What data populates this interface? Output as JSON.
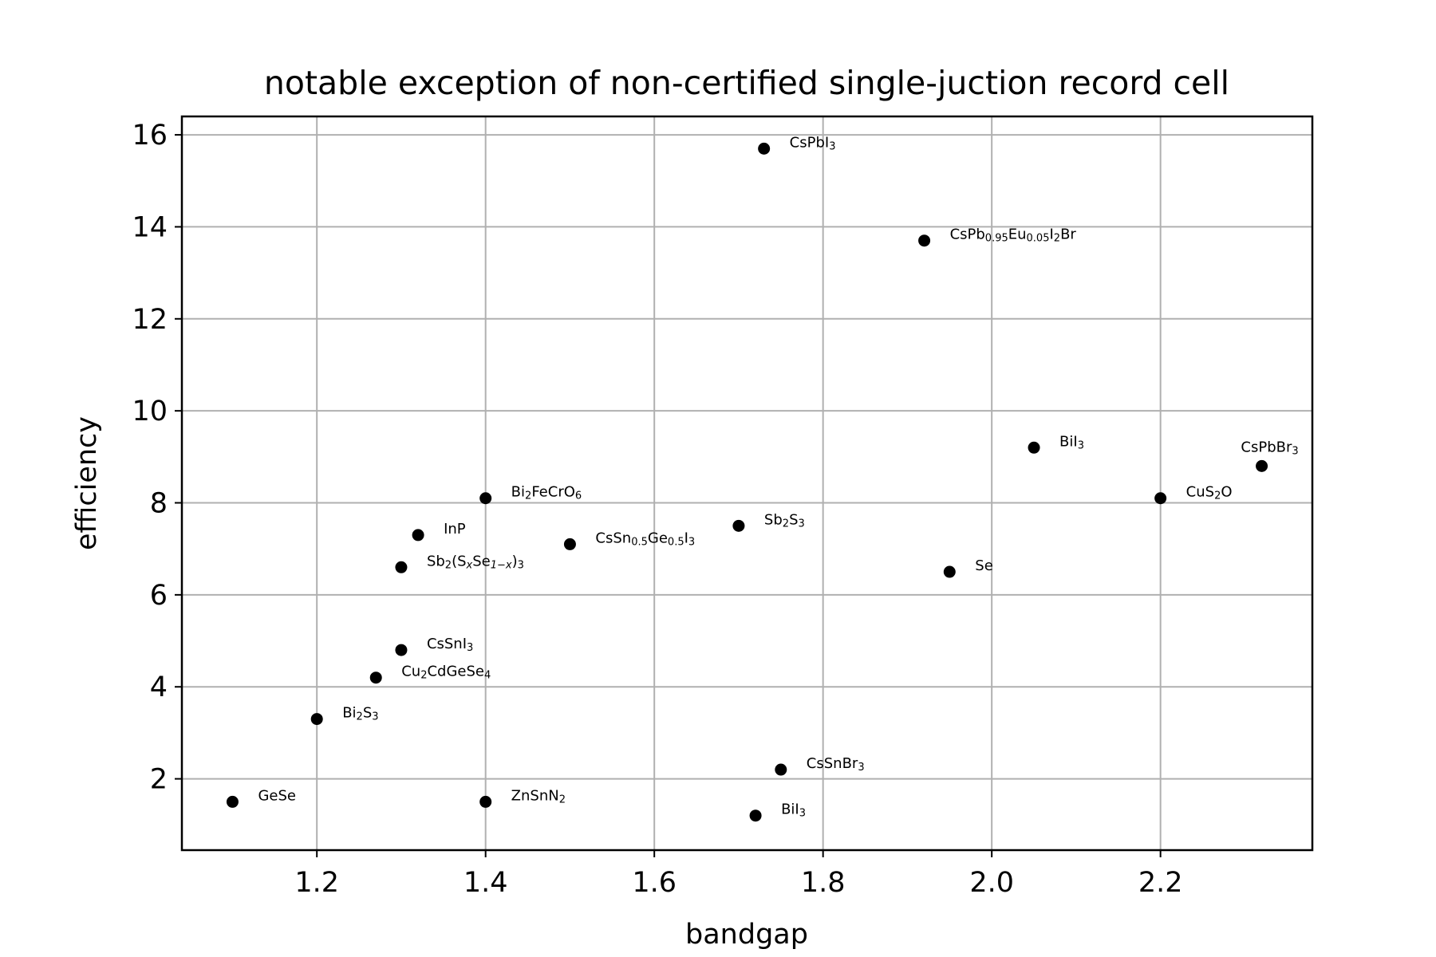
{
  "chart_data": {
    "type": "scatter",
    "title": "notable exception of non-certified single-juction record cell",
    "xlabel": "bandgap",
    "ylabel": "efficiency",
    "xlim": [
      1.04,
      2.38
    ],
    "ylim": [
      0.45,
      16.4
    ],
    "xticks": [
      1.2,
      1.4,
      1.6,
      1.8,
      2.0,
      2.2
    ],
    "xtick_labels": [
      "1.2",
      "1.4",
      "1.6",
      "1.8",
      "2.0",
      "2.2"
    ],
    "yticks": [
      2,
      4,
      6,
      8,
      10,
      12,
      14,
      16
    ],
    "ytick_labels": [
      "2",
      "4",
      "6",
      "8",
      "10",
      "12",
      "14",
      "16"
    ],
    "grid": true,
    "marker_color": "#000000",
    "points": [
      {
        "x": 1.73,
        "y": 15.7,
        "label": "CsPbI",
        "label_sub": "3"
      },
      {
        "x": 1.92,
        "y": 13.7,
        "label": "CsPb0.95Eu0.05I2Br"
      },
      {
        "x": 2.05,
        "y": 9.2,
        "label": "BiI",
        "label_sub": "3"
      },
      {
        "x": 2.32,
        "y": 8.8,
        "label": "CsPbBr",
        "label_sub": "3",
        "label_pos": "above"
      },
      {
        "x": 2.2,
        "y": 8.1,
        "label": "CuS2O"
      },
      {
        "x": 1.4,
        "y": 8.1,
        "label": "Bi2FeCrO6"
      },
      {
        "x": 1.32,
        "y": 7.3,
        "label": "InP"
      },
      {
        "x": 1.5,
        "y": 7.1,
        "label": "CsSn0.5Ge0.5I3"
      },
      {
        "x": 1.7,
        "y": 7.5,
        "label": "Sb2S3"
      },
      {
        "x": 1.3,
        "y": 6.6,
        "label": "Sb2(SxSe1-x)3"
      },
      {
        "x": 1.95,
        "y": 6.5,
        "label": "Se"
      },
      {
        "x": 1.3,
        "y": 4.8,
        "label": "CsSnI",
        "label_sub": "3"
      },
      {
        "x": 1.27,
        "y": 4.2,
        "label": "Cu2CdGeSe4"
      },
      {
        "x": 1.2,
        "y": 3.3,
        "label": "Bi2S3"
      },
      {
        "x": 1.75,
        "y": 2.2,
        "label": "CsSnBr",
        "label_sub": "3"
      },
      {
        "x": 1.1,
        "y": 1.5,
        "label": "GeSe"
      },
      {
        "x": 1.4,
        "y": 1.5,
        "label": "ZnSnN2"
      },
      {
        "x": 1.72,
        "y": 1.2,
        "label": "BiI",
        "label_sub": "3"
      }
    ]
  }
}
